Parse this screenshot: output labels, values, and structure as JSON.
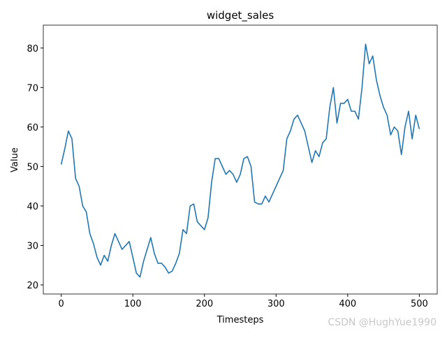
{
  "chart_data": {
    "type": "line",
    "title": "widget_sales",
    "x_label": "Timesteps",
    "y_label": "Value",
    "watermark": "CSDN @HughYue1990",
    "x": [
      0,
      5,
      10,
      15,
      20,
      25,
      30,
      35,
      40,
      45,
      50,
      55,
      60,
      65,
      70,
      75,
      80,
      85,
      90,
      95,
      100,
      105,
      110,
      115,
      120,
      125,
      130,
      135,
      140,
      145,
      150,
      155,
      160,
      165,
      170,
      175,
      180,
      185,
      190,
      195,
      200,
      205,
      210,
      215,
      220,
      225,
      230,
      235,
      240,
      245,
      250,
      255,
      260,
      265,
      270,
      275,
      280,
      285,
      290,
      295,
      300,
      305,
      310,
      315,
      320,
      325,
      330,
      335,
      340,
      345,
      350,
      355,
      360,
      365,
      370,
      375,
      380,
      385,
      390,
      395,
      400,
      405,
      410,
      415,
      420,
      425,
      430,
      435,
      440,
      445,
      450,
      455,
      460,
      465,
      470,
      475,
      480,
      485,
      490,
      495,
      500
    ],
    "series": [
      {
        "name": "widget_sales",
        "color": "#1f77b4",
        "values": [
          50.5,
          54.5,
          59,
          57,
          47,
          45,
          40,
          38.5,
          33,
          30.5,
          27,
          25,
          27.5,
          26,
          30,
          33,
          31,
          29,
          30,
          31,
          27,
          23,
          22,
          26,
          29,
          32,
          28,
          25.5,
          25.5,
          24.5,
          23,
          23.5,
          25.5,
          28,
          34,
          33,
          40,
          40.5,
          36,
          35,
          34,
          37,
          46,
          52,
          52,
          50,
          48,
          49,
          48,
          46,
          48,
          52,
          52.5,
          50,
          41,
          40.5,
          40.5,
          42.5,
          41,
          43,
          45,
          47,
          49,
          57,
          59,
          62,
          63,
          61,
          59,
          55,
          51,
          54,
          52.5,
          56,
          57,
          65,
          70,
          61,
          66,
          66,
          67,
          64,
          64,
          62,
          70,
          81,
          76,
          78,
          72,
          68,
          65,
          63,
          58,
          60,
          59,
          53,
          60,
          64,
          57,
          63,
          59.5
        ]
      }
    ],
    "xlim": [
      -25,
      525
    ],
    "ylim": [
      17.7,
      85.8
    ],
    "xticks": [
      0,
      100,
      200,
      300,
      400,
      500
    ],
    "yticks": [
      20,
      30,
      40,
      50,
      60,
      70,
      80
    ]
  }
}
